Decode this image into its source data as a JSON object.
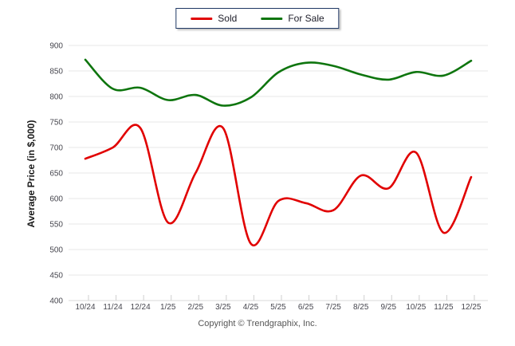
{
  "legend": {
    "items": [
      {
        "label": "Sold",
        "color": "#e10000"
      },
      {
        "label": "For Sale",
        "color": "#0e750e"
      }
    ]
  },
  "chart_data": {
    "type": "line",
    "x": [
      "10/24",
      "11/24",
      "12/24",
      "1/25",
      "2/25",
      "3/25",
      "4/25",
      "5/25",
      "6/25",
      "7/25",
      "8/25",
      "9/25",
      "10/25",
      "11/25",
      "12/25"
    ],
    "series": [
      {
        "name": "Sold",
        "color": "#e10000",
        "values": [
          678,
          700,
          738,
          553,
          650,
          738,
          512,
          595,
          591,
          577,
          645,
          620,
          690,
          533,
          642
        ]
      },
      {
        "name": "For Sale",
        "color": "#0e750e",
        "values": [
          872,
          815,
          817,
          793,
          803,
          782,
          798,
          847,
          866,
          860,
          843,
          833,
          848,
          841,
          870
        ]
      }
    ],
    "title": "",
    "xlabel": "",
    "ylabel": "Average Price (in $,000)",
    "ylim": [
      400,
      900
    ],
    "ytick_step": 50,
    "yticks": [
      "400",
      "450",
      "500",
      "550",
      "600",
      "650",
      "700",
      "750",
      "800",
      "850",
      "900"
    ],
    "grid": "horizontal",
    "legend_position": "top-center",
    "smooth": true
  },
  "footer": {
    "copyright": "Copyright © Trendgraphix, Inc."
  },
  "style": {
    "grid_color": "#e7e7e7",
    "baseline_color": "#d9d9d9",
    "tick_color": "#cfcfcf",
    "axis_text_color": "#47474f",
    "line_width": 2.6
  }
}
